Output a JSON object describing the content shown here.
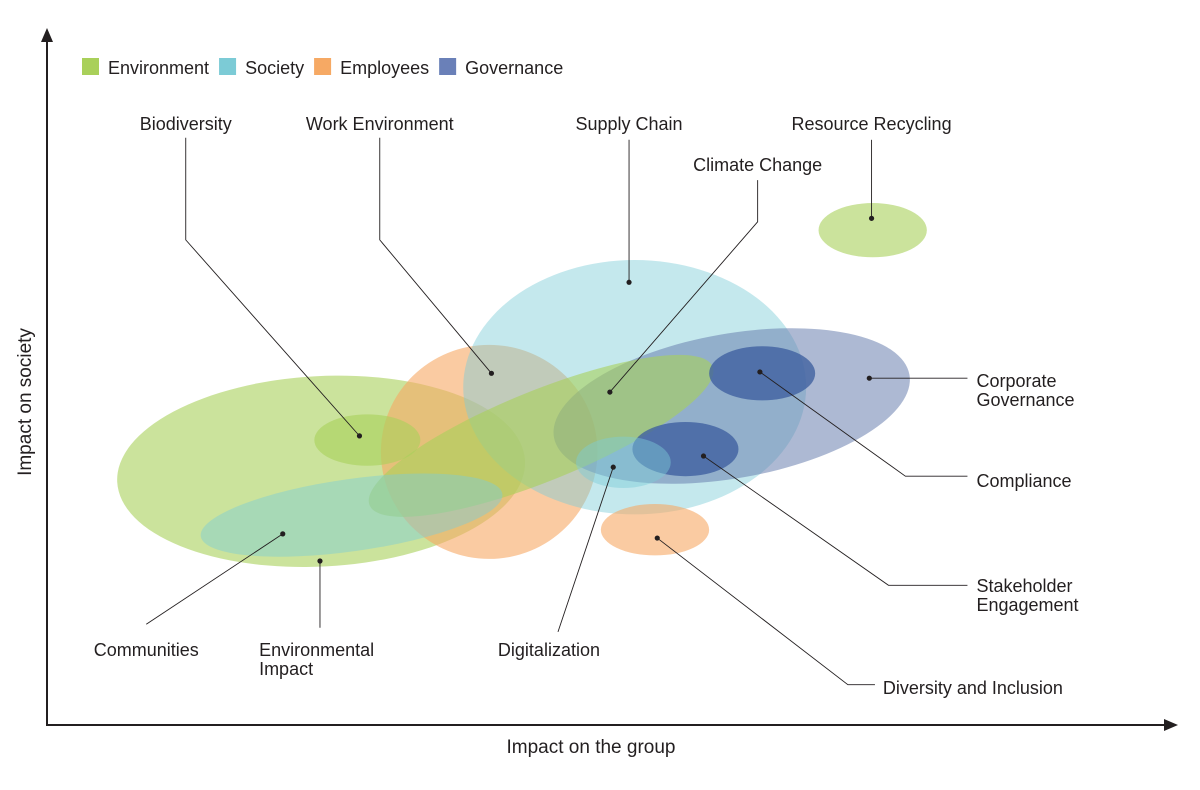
{
  "chart_data": {
    "type": "bubble-ellipse",
    "xlabel": "Impact on the group",
    "ylabel": "Impact on society",
    "xlim": [
      0,
      100
    ],
    "ylim": [
      0,
      100
    ],
    "grid": false,
    "legend_position": "top-left",
    "legend": [
      {
        "name": "Environment",
        "color": "#a9d05a"
      },
      {
        "name": "Society",
        "color": "#7ccbd6"
      },
      {
        "name": "Employees",
        "color": "#f6a964"
      },
      {
        "name": "Governance",
        "color": "#6a80b8"
      }
    ],
    "category_styles": {
      "Environment": {
        "fill": "#a9d05a",
        "opacity": 0.6
      },
      "Society": {
        "fill": "#7ccbd6",
        "opacity": 0.45
      },
      "Employees": {
        "fill": "#f6a964",
        "opacity": 0.6
      },
      "Governance": {
        "fill": "#6a7fae",
        "opacity": 0.55
      },
      "GovernanceStrong": {
        "fill": "#3e5f9f",
        "opacity": 0.78
      }
    },
    "items": [
      {
        "name": "Environmental Impact",
        "lines": [
          "Environmental",
          "Impact"
        ],
        "style": "Environment",
        "cx": 24.3,
        "cy": 36.5,
        "rx": 18.1,
        "ry": 13.7,
        "rot": -3,
        "anchor": [
          24.2,
          23.6
        ],
        "path": [
          [
            24.2,
            14.0
          ]
        ],
        "label": [
          18.8,
          10.8
        ],
        "align": "start"
      },
      {
        "name": "Work Environment",
        "lines": [
          "Work Environment"
        ],
        "style": "Employees",
        "cx": 39.2,
        "cy": 39.3,
        "rx": 9.6,
        "ry": 15.4,
        "rot": 0,
        "anchor": [
          39.4,
          50.6
        ],
        "path": [
          [
            29.5,
            69.8
          ],
          [
            29.5,
            84.5
          ]
        ],
        "label": [
          29.5,
          86.5
        ],
        "align": "middle"
      },
      {
        "name": "Supply Chain",
        "lines": [
          "Supply Chain"
        ],
        "style": "Society",
        "cx": 52.1,
        "cy": 48.6,
        "rx": 15.2,
        "ry": 18.3,
        "rot": 0,
        "anchor": [
          51.6,
          63.7
        ],
        "path": [
          [
            51.6,
            84.2
          ]
        ],
        "label": [
          51.6,
          86.5
        ],
        "align": "middle"
      },
      {
        "name": "Corporate Governance",
        "lines": [
          "Corporate",
          "Governance"
        ],
        "style": "Governance",
        "cx": 60.7,
        "cy": 45.9,
        "rx": 16.0,
        "ry": 10.4,
        "rot": -10,
        "anchor": [
          72.9,
          49.9
        ],
        "path": [
          [
            81.6,
            49.9
          ]
        ],
        "label": [
          82.4,
          49.5
        ],
        "align": "start"
      },
      {
        "name": "Climate Change",
        "lines": [
          "Climate Change"
        ],
        "style": "Environment",
        "cx": 43.8,
        "cy": 41.6,
        "rx": 16.4,
        "ry": 6.5,
        "rot": -22,
        "anchor": [
          49.9,
          47.9
        ],
        "path": [
          [
            63.0,
            72.4
          ],
          [
            63.0,
            78.4
          ]
        ],
        "label": [
          63.0,
          80.6
        ],
        "align": "middle"
      },
      {
        "name": "Communities",
        "lines": [
          "Communities"
        ],
        "style": "Society",
        "cx": 27.0,
        "cy": 30.2,
        "rx": 13.5,
        "ry": 5.2,
        "rot": -8,
        "anchor": [
          20.9,
          27.5
        ],
        "path": [
          [
            8.8,
            14.5
          ]
        ],
        "label": [
          8.8,
          10.8
        ],
        "align": "middle"
      },
      {
        "name": "Biodiversity",
        "lines": [
          "Biodiversity"
        ],
        "style": "Environment",
        "cx": 28.4,
        "cy": 41.0,
        "rx": 4.7,
        "ry": 3.7,
        "rot": 0,
        "anchor": [
          27.7,
          41.6
        ],
        "path": [
          [
            12.3,
            69.8
          ],
          [
            12.3,
            84.5
          ]
        ],
        "label": [
          12.3,
          86.5
        ],
        "align": "middle"
      },
      {
        "name": "Compliance",
        "lines": [
          "Compliance"
        ],
        "style": "GovernanceStrong",
        "cx": 63.4,
        "cy": 50.6,
        "rx": 4.7,
        "ry": 3.9,
        "rot": 0,
        "anchor": [
          63.2,
          50.8
        ],
        "path": [
          [
            76.1,
            35.8
          ],
          [
            81.6,
            35.8
          ]
        ],
        "label": [
          82.4,
          35.1
        ],
        "align": "start"
      },
      {
        "name": "Stakeholder Engagement",
        "lines": [
          "Stakeholder",
          "Engagement"
        ],
        "style": "GovernanceStrong",
        "cx": 56.6,
        "cy": 39.7,
        "rx": 4.7,
        "ry": 3.9,
        "rot": 0,
        "anchor": [
          58.2,
          38.7
        ],
        "path": [
          [
            74.6,
            20.1
          ],
          [
            81.6,
            20.1
          ]
        ],
        "label": [
          82.4,
          20.0
        ],
        "align": "start"
      },
      {
        "name": "Digitalization",
        "lines": [
          "Digitalization"
        ],
        "style": "Society",
        "cx": 51.1,
        "cy": 37.8,
        "rx": 4.2,
        "ry": 3.7,
        "rot": 0,
        "anchor": [
          50.2,
          37.1
        ],
        "path": [
          [
            45.3,
            13.4
          ]
        ],
        "label": [
          44.5,
          10.8
        ],
        "align": "middle"
      },
      {
        "name": "Diversity and Inclusion",
        "lines": [
          "Diversity and Inclusion"
        ],
        "style": "Employees",
        "cx": 53.9,
        "cy": 28.1,
        "rx": 4.8,
        "ry": 3.7,
        "rot": 0,
        "anchor": [
          54.1,
          26.9
        ],
        "path": [
          [
            71.0,
            5.8
          ],
          [
            73.4,
            5.8
          ]
        ],
        "label": [
          74.1,
          5.3
        ],
        "align": "start"
      },
      {
        "name": "Resource Recycling",
        "lines": [
          "Resource Recycling"
        ],
        "style": "Environment",
        "cx": 73.2,
        "cy": 71.2,
        "rx": 4.8,
        "ry": 3.9,
        "rot": 0,
        "anchor": [
          73.1,
          72.9
        ],
        "path": [
          [
            73.1,
            84.2
          ]
        ],
        "label": [
          73.1,
          86.5
        ],
        "align": "middle"
      }
    ]
  }
}
